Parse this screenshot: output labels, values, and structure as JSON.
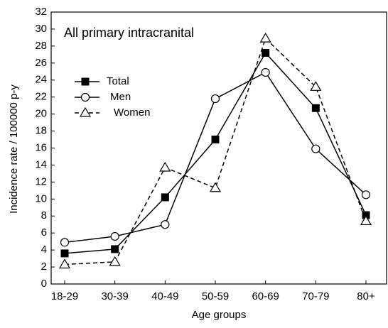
{
  "chart_data": {
    "type": "line",
    "annotation": "All primary intracranital",
    "x_label": "Age groups",
    "y_label": "Incidence rate / 100000 p-y",
    "categories": [
      "18-29",
      "30-39",
      "40-49",
      "50-59",
      "60-69",
      "70-79",
      "80+"
    ],
    "series": [
      {
        "name": "Total",
        "color": "#000000",
        "marker": "square",
        "line_style": "solid",
        "values": [
          3.6,
          4.1,
          10.2,
          17.0,
          27.2,
          20.7,
          8.1
        ]
      },
      {
        "name": "Men",
        "color": "#000000",
        "marker": "circle",
        "line_style": "solid",
        "values": [
          4.9,
          5.6,
          7.0,
          21.8,
          24.9,
          15.9,
          10.5
        ]
      },
      {
        "name": "Women",
        "color": "#000000",
        "marker": "triangle",
        "line_style": "dashed",
        "values": [
          2.3,
          2.6,
          13.7,
          11.3,
          28.9,
          23.2,
          7.4
        ]
      }
    ],
    "ylim": [
      0,
      32
    ],
    "yticks": [
      0,
      2,
      4,
      6,
      8,
      10,
      12,
      14,
      16,
      18,
      20,
      22,
      24,
      26,
      28,
      30,
      32
    ],
    "grid": false
  }
}
